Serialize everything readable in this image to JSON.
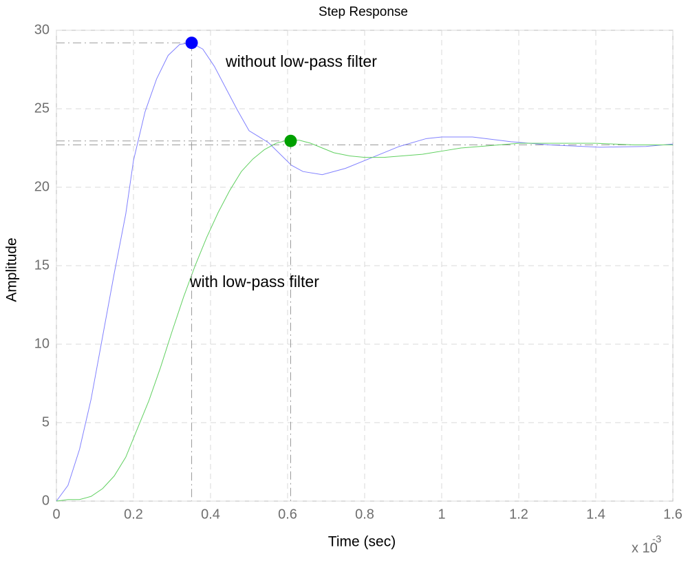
{
  "chart_data": {
    "type": "line",
    "title": "Step Response",
    "x_label": "Time (sec)",
    "y_label": "Amplitude",
    "x_multiplier": "x 10",
    "x_exponent": "-3",
    "xlim": [
      0,
      1.6
    ],
    "ylim": [
      0,
      30
    ],
    "xticks": [
      0,
      0.2,
      0.4,
      0.6,
      0.8,
      1,
      1.2,
      1.4,
      1.6
    ],
    "yticks": [
      0,
      5,
      10,
      15,
      20,
      25,
      30
    ],
    "grid": true,
    "steady_state": 22.7,
    "series": [
      {
        "name": "without low-pass filter",
        "color": "#8080ff",
        "x": [
          0,
          0.03,
          0.06,
          0.09,
          0.12,
          0.15,
          0.18,
          0.2,
          0.23,
          0.26,
          0.29,
          0.32,
          0.35,
          0.38,
          0.41,
          0.44,
          0.47,
          0.5,
          0.55,
          0.61,
          0.64,
          0.69,
          0.75,
          0.82,
          0.89,
          0.96,
          1.0,
          1.08,
          1.18,
          1.28,
          1.41,
          1.53,
          1.6
        ],
        "values": [
          0,
          1,
          3.3,
          6.5,
          10.5,
          14.5,
          18.3,
          21.7,
          24.8,
          26.9,
          28.4,
          29.1,
          29.2,
          28.8,
          27.7,
          26.3,
          24.9,
          23.6,
          22.85,
          21.4,
          21.0,
          20.8,
          21.2,
          21.9,
          22.6,
          23.1,
          23.2,
          23.2,
          22.9,
          22.7,
          22.55,
          22.6,
          22.75
        ]
      },
      {
        "name": "with low-pass filter",
        "color": "#60d060",
        "x": [
          0,
          0.03,
          0.06,
          0.09,
          0.12,
          0.15,
          0.18,
          0.21,
          0.24,
          0.27,
          0.3,
          0.33,
          0.36,
          0.39,
          0.42,
          0.45,
          0.48,
          0.51,
          0.54,
          0.57,
          0.6,
          0.63,
          0.66,
          0.69,
          0.72,
          0.76,
          0.8,
          0.85,
          0.9,
          0.95,
          1.0,
          1.05,
          1.1,
          1.2,
          1.3,
          1.4,
          1.5,
          1.6
        ],
        "values": [
          0,
          0.1,
          0.1,
          0.3,
          0.8,
          1.6,
          2.8,
          4.6,
          6.4,
          8.5,
          10.8,
          13.0,
          15.0,
          16.8,
          18.4,
          19.8,
          21.0,
          21.8,
          22.4,
          22.8,
          23.0,
          23.0,
          22.8,
          22.5,
          22.2,
          22.0,
          21.9,
          21.9,
          22.0,
          22.1,
          22.3,
          22.5,
          22.6,
          22.8,
          22.8,
          22.8,
          22.7,
          22.7
        ]
      }
    ],
    "peaks": [
      {
        "x": 0.351,
        "y": 29.2,
        "color": "#0000ff"
      },
      {
        "x": 0.608,
        "y": 22.95,
        "color": "#00a000"
      }
    ]
  }
}
